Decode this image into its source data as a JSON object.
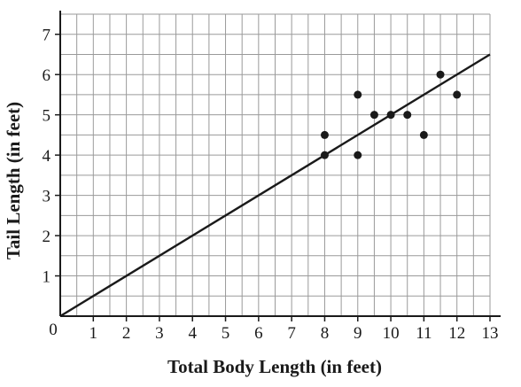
{
  "chart_data": {
    "type": "scatter",
    "xlabel": "Total Body Length (in feet)",
    "ylabel": "Tail Length (in feet)",
    "xlim": [
      0,
      13
    ],
    "ylim": [
      0,
      7.5
    ],
    "grid": true,
    "grid_minor_step": 0.5,
    "x_ticks": [
      1,
      2,
      3,
      4,
      5,
      6,
      7,
      8,
      9,
      10,
      11,
      12,
      13
    ],
    "y_ticks": [
      1,
      2,
      3,
      4,
      5,
      6,
      7
    ],
    "origin_label": "0",
    "points": [
      {
        "x": 8,
        "y": 4.5
      },
      {
        "x": 8,
        "y": 4
      },
      {
        "x": 9,
        "y": 5.5
      },
      {
        "x": 9,
        "y": 4
      },
      {
        "x": 9.5,
        "y": 5
      },
      {
        "x": 10,
        "y": 5
      },
      {
        "x": 10.5,
        "y": 5
      },
      {
        "x": 11,
        "y": 4.5
      },
      {
        "x": 11.5,
        "y": 6
      },
      {
        "x": 12,
        "y": 5.5
      }
    ],
    "trend_line": {
      "x0": 0,
      "y0": 0,
      "x1": 13,
      "y1": 6.5
    },
    "colors": {
      "points": "#1a1a1a",
      "line": "#1a1a1a",
      "grid": "#9a9a9a",
      "axes": "#1a1a1a"
    }
  }
}
